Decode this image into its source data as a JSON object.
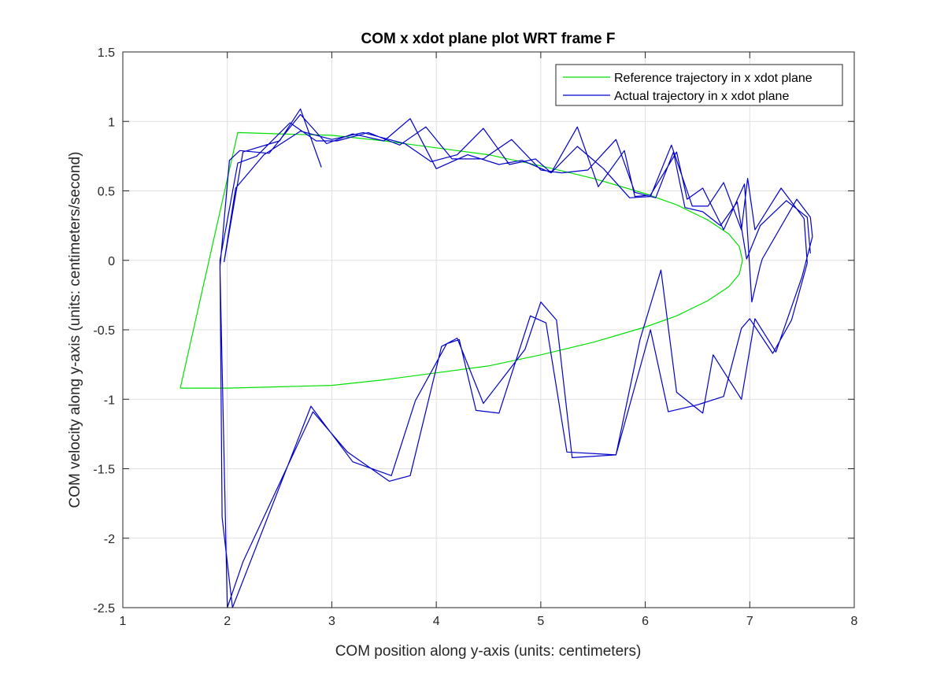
{
  "chart_data": {
    "type": "line",
    "title": "COM x xdot plane plot WRT frame F",
    "xlabel": "COM position along y-axis (units: centimeters)",
    "ylabel": "COM velocity along y-axis (units: centimeters/second)",
    "xlim": [
      1,
      8
    ],
    "ylim": [
      -2.5,
      1.5
    ],
    "xticks": [
      1,
      2,
      3,
      4,
      5,
      6,
      7,
      8
    ],
    "yticks": [
      1.5,
      1,
      0.5,
      0,
      -0.5,
      -1,
      -1.5,
      -2,
      -2.5
    ],
    "xtick_labels": [
      "1",
      "2",
      "3",
      "4",
      "5",
      "6",
      "7",
      "8"
    ],
    "ytick_labels": [
      "1.5",
      "1",
      "0.5",
      "0",
      "-0.5",
      "-1",
      "-1.5",
      "-2",
      "-2.5"
    ],
    "grid": true,
    "legend_position": "top-right",
    "series": [
      {
        "name": "Reference trajectory in x xdot plane",
        "color": "#00e000",
        "x": [
          1.55,
          2.1,
          2.5,
          3.0,
          3.5,
          4.0,
          4.5,
          5.0,
          5.5,
          6.0,
          6.3,
          6.6,
          6.8,
          6.9,
          6.93,
          6.9,
          6.8,
          6.6,
          6.3,
          6.0,
          5.5,
          5.0,
          4.5,
          4.0,
          3.5,
          3.0,
          2.5,
          2.0,
          1.55
        ],
        "y": [
          -0.92,
          0.92,
          0.91,
          0.9,
          0.86,
          0.81,
          0.76,
          0.68,
          0.59,
          0.48,
          0.4,
          0.29,
          0.19,
          0.1,
          0.0,
          -0.1,
          -0.19,
          -0.29,
          -0.4,
          -0.48,
          -0.59,
          -0.68,
          -0.76,
          -0.81,
          -0.86,
          -0.9,
          -0.91,
          -0.92,
          -0.92
        ]
      },
      {
        "name": "Actual trajectory in x xdot plane",
        "color": "#0000c8",
        "x": [
          2.9,
          2.7,
          2.5,
          2.15,
          1.97,
          2.08,
          2.35,
          2.7,
          3.0,
          3.3,
          3.7,
          3.95,
          4.2,
          4.45,
          4.7,
          4.95,
          5.1,
          5.35,
          5.55,
          5.8,
          5.9,
          6.05,
          6.3,
          6.4,
          6.55,
          6.75,
          6.95,
          7.02,
          7.1,
          7.12,
          7.45,
          7.58,
          7.6,
          7.5,
          7.25,
          7.05,
          6.92,
          6.65,
          6.55,
          6.3,
          6.15,
          5.95,
          5.72,
          5.3,
          5.15,
          5.0,
          4.85,
          4.45,
          4.2,
          4.05,
          3.75,
          3.55,
          3.15,
          2.82,
          2.15,
          2.0,
          1.93,
          2.02,
          2.12,
          2.4,
          2.7,
          2.95,
          3.2,
          3.5,
          3.75,
          4.0,
          4.3,
          4.6,
          4.82,
          5.1,
          5.35,
          5.6,
          5.85,
          6.05,
          6.25,
          6.45,
          6.6,
          6.75,
          6.92,
          6.98,
          7.05,
          7.3,
          7.52,
          7.55,
          7.4,
          7.22,
          7.0,
          6.92,
          6.75,
          6.5,
          6.22,
          6.05,
          5.72,
          5.25,
          5.05,
          4.9,
          4.6,
          4.38,
          4.22,
          4.1,
          3.8,
          3.57,
          3.2,
          2.8,
          2.05,
          1.95,
          1.93,
          2.1,
          2.28,
          2.6,
          2.85,
          3.05,
          3.35,
          3.65,
          3.9,
          4.15,
          4.45,
          4.72,
          5.0,
          5.2,
          5.45,
          5.72,
          5.9,
          6.1,
          6.27,
          6.38,
          6.55,
          6.72,
          6.88,
          6.97,
          7.1,
          7.35,
          7.55,
          7.58
        ],
        "y": [
          0.67,
          1.09,
          0.86,
          0.78,
          -0.01,
          0.52,
          0.76,
          0.93,
          0.87,
          0.92,
          0.84,
          0.71,
          0.76,
          0.95,
          0.69,
          0.73,
          0.63,
          0.96,
          0.53,
          0.79,
          0.46,
          0.47,
          0.78,
          0.44,
          0.52,
          0.22,
          0.55,
          -0.3,
          -0.04,
          0.01,
          0.44,
          0.31,
          0.17,
          -0.12,
          -0.66,
          -0.42,
          -1.0,
          -0.68,
          -1.1,
          -0.95,
          -0.07,
          -0.57,
          -1.4,
          -1.42,
          -0.43,
          -0.3,
          -0.64,
          -1.03,
          -0.56,
          -0.62,
          -1.55,
          -1.59,
          -1.38,
          -1.09,
          -2.17,
          -2.5,
          -0.05,
          0.72,
          0.79,
          0.77,
          1.05,
          0.84,
          0.91,
          0.86,
          1.02,
          0.66,
          0.76,
          0.69,
          0.72,
          0.63,
          0.82,
          0.66,
          0.45,
          0.46,
          0.83,
          0.39,
          0.39,
          0.56,
          0.22,
          0.59,
          0.22,
          0.52,
          0.3,
          -0.02,
          -0.43,
          -0.67,
          -0.42,
          -0.49,
          -0.98,
          -1.04,
          -1.09,
          -0.5,
          -1.4,
          -1.38,
          -0.45,
          -0.4,
          -1.1,
          -1.08,
          -0.57,
          -0.6,
          -1.01,
          -1.55,
          -1.45,
          -1.05,
          -2.5,
          -1.85,
          0.0,
          0.7,
          0.75,
          0.99,
          0.86,
          0.86,
          0.92,
          0.83,
          0.96,
          0.73,
          0.73,
          0.87,
          0.65,
          0.63,
          0.65,
          0.87,
          0.49,
          0.45,
          0.78,
          0.38,
          0.35,
          0.25,
          0.42,
          0.01,
          0.25,
          0.43,
          0.31,
          0.05
        ]
      }
    ]
  }
}
